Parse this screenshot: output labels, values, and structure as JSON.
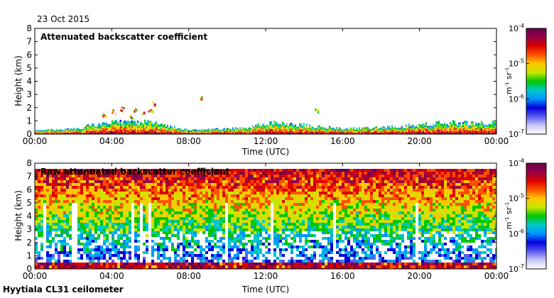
{
  "date": "23 Oct 2015",
  "footer": "Hyytiala CL31 ceilometer",
  "colors": {
    "colormap": [
      "#ffffff",
      "#c7c7f5",
      "#5a5af0",
      "#0000dc",
      "#0096ff",
      "#00c8c8",
      "#00c800",
      "#c8e600",
      "#ffc800",
      "#ff5000",
      "#dc0000",
      "#960046",
      "#64004b"
    ],
    "frame": "#000000"
  },
  "chart_data": [
    {
      "type": "heatmap",
      "title": "Attenuated backscatter coefficient",
      "xlabel": "Time (UTC)",
      "ylabel": "Height (km)",
      "x_ticks": [
        "00:00",
        "04:00",
        "08:00",
        "12:00",
        "16:00",
        "20:00",
        "00:00"
      ],
      "x_range_hours": [
        0,
        24
      ],
      "ylim": [
        0,
        8
      ],
      "y_ticks": [
        "0",
        "1",
        "2",
        "3",
        "4",
        "5",
        "6",
        "7",
        "8"
      ],
      "colorbar": {
        "scale": "log",
        "label": "m-1 sr-1",
        "label_html": "m<tspan dy='-4' font-size='7'>-1</tspan><tspan dy='4'> sr</tspan><tspan dy='-4' font-size='7'>-1</tspan>",
        "range": [
          1e-07,
          0.0001
        ],
        "ticks": [
          {
            "base": "10",
            "exp": "-4",
            "value": 0.0001
          },
          {
            "base": "10",
            "exp": "-5",
            "value": 1e-05
          },
          {
            "base": "10",
            "exp": "-6",
            "value": 1e-06
          },
          {
            "base": "10",
            "exp": "-7",
            "value": 1e-07
          }
        ]
      },
      "boundary_layer_top_km": [
        {
          "t": 0,
          "h": 0.3
        },
        {
          "t": 2,
          "h": 0.4
        },
        {
          "t": 3,
          "h": 0.7
        },
        {
          "t": 4,
          "h": 0.9
        },
        {
          "t": 5,
          "h": 1.0
        },
        {
          "t": 6,
          "h": 0.9
        },
        {
          "t": 8,
          "h": 0.3
        },
        {
          "t": 11,
          "h": 0.5
        },
        {
          "t": 12,
          "h": 0.9
        },
        {
          "t": 14,
          "h": 0.7
        },
        {
          "t": 16,
          "h": 0.4
        },
        {
          "t": 19,
          "h": 0.6
        },
        {
          "t": 21,
          "h": 0.9
        },
        {
          "t": 24,
          "h": 0.9
        }
      ],
      "features": "Signal confined mostly below 1 km; sparse aerosol/cloud returns near 1.5-2.5 km between 04:00 and 06:30, around 08:30 and 14:30"
    },
    {
      "type": "heatmap",
      "title": "Raw attenuated backscatter coefficient",
      "xlabel": "Time (UTC)",
      "ylabel": "Height (km)",
      "x_ticks": [
        "00:00",
        "04:00",
        "08:00",
        "12:00",
        "16:00",
        "20:00",
        "00:00"
      ],
      "x_range_hours": [
        0,
        24
      ],
      "ylim": [
        0,
        8
      ],
      "y_ticks": [
        "0",
        "1",
        "2",
        "3",
        "4",
        "5",
        "6",
        "7",
        "8"
      ],
      "colorbar": {
        "scale": "log",
        "label": "m-1 sr-1",
        "label_html": "m<tspan dy='-4' font-size='7'>-1</tspan><tspan dy='4'> sr</tspan><tspan dy='-4' font-size='7'>-1</tspan>",
        "range": [
          1e-07,
          0.0001
        ],
        "ticks": [
          {
            "base": "10",
            "exp": "-4",
            "value": 0.0001
          },
          {
            "base": "10",
            "exp": "-5",
            "value": 1e-05
          },
          {
            "base": "10",
            "exp": "-6",
            "value": 1e-06
          },
          {
            "base": "10",
            "exp": "-7",
            "value": 1e-07
          }
        ]
      },
      "features": "Noise dominated field: blue below ~3 km grading to green/yellow mid-levels and orange/red above 6 km; vertical white gaps near 00:30, 02:00, 05:00-06:00, 09:50, 15:30, 19:40"
    }
  ]
}
